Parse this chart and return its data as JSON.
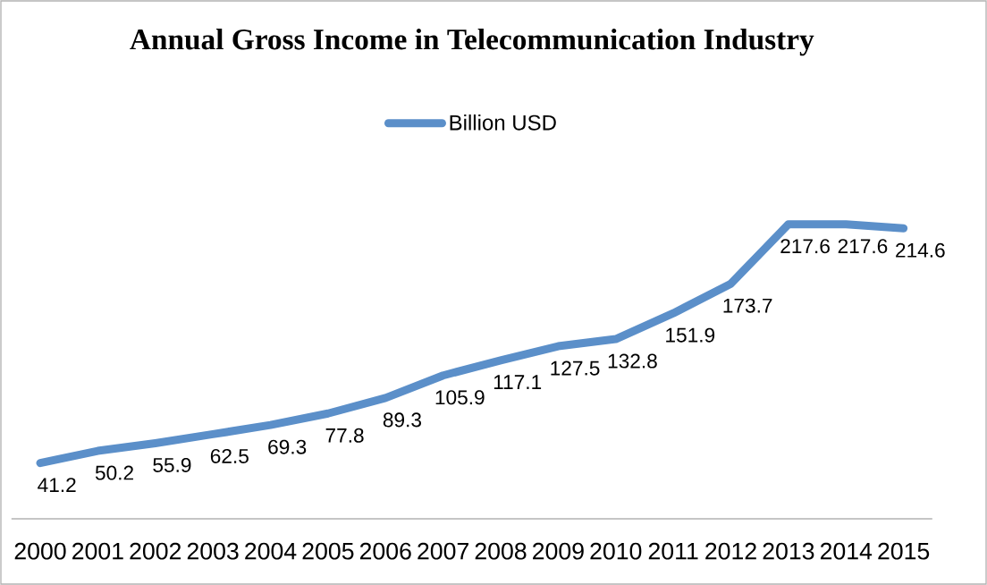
{
  "chart_data": {
    "type": "line",
    "title": "Annual Gross Income in Telecommunication Industry",
    "categories": [
      "2000",
      "2001",
      "2002",
      "2003",
      "2004",
      "2005",
      "2006",
      "2007",
      "2008",
      "2009",
      "2010",
      "2011",
      "2012",
      "2013",
      "2014",
      "2015"
    ],
    "series": [
      {
        "name": "Billion USD",
        "color": "#5b8fc9",
        "values": [
          41.2,
          50.2,
          55.9,
          62.5,
          69.3,
          77.8,
          89.3,
          105.9,
          117.1,
          127.5,
          132.8,
          151.9,
          173.7,
          217.6,
          217.6,
          214.6
        ]
      }
    ],
    "data_labels": true,
    "legend": "top",
    "grid": false,
    "marker": "none",
    "line_style": "solid"
  }
}
